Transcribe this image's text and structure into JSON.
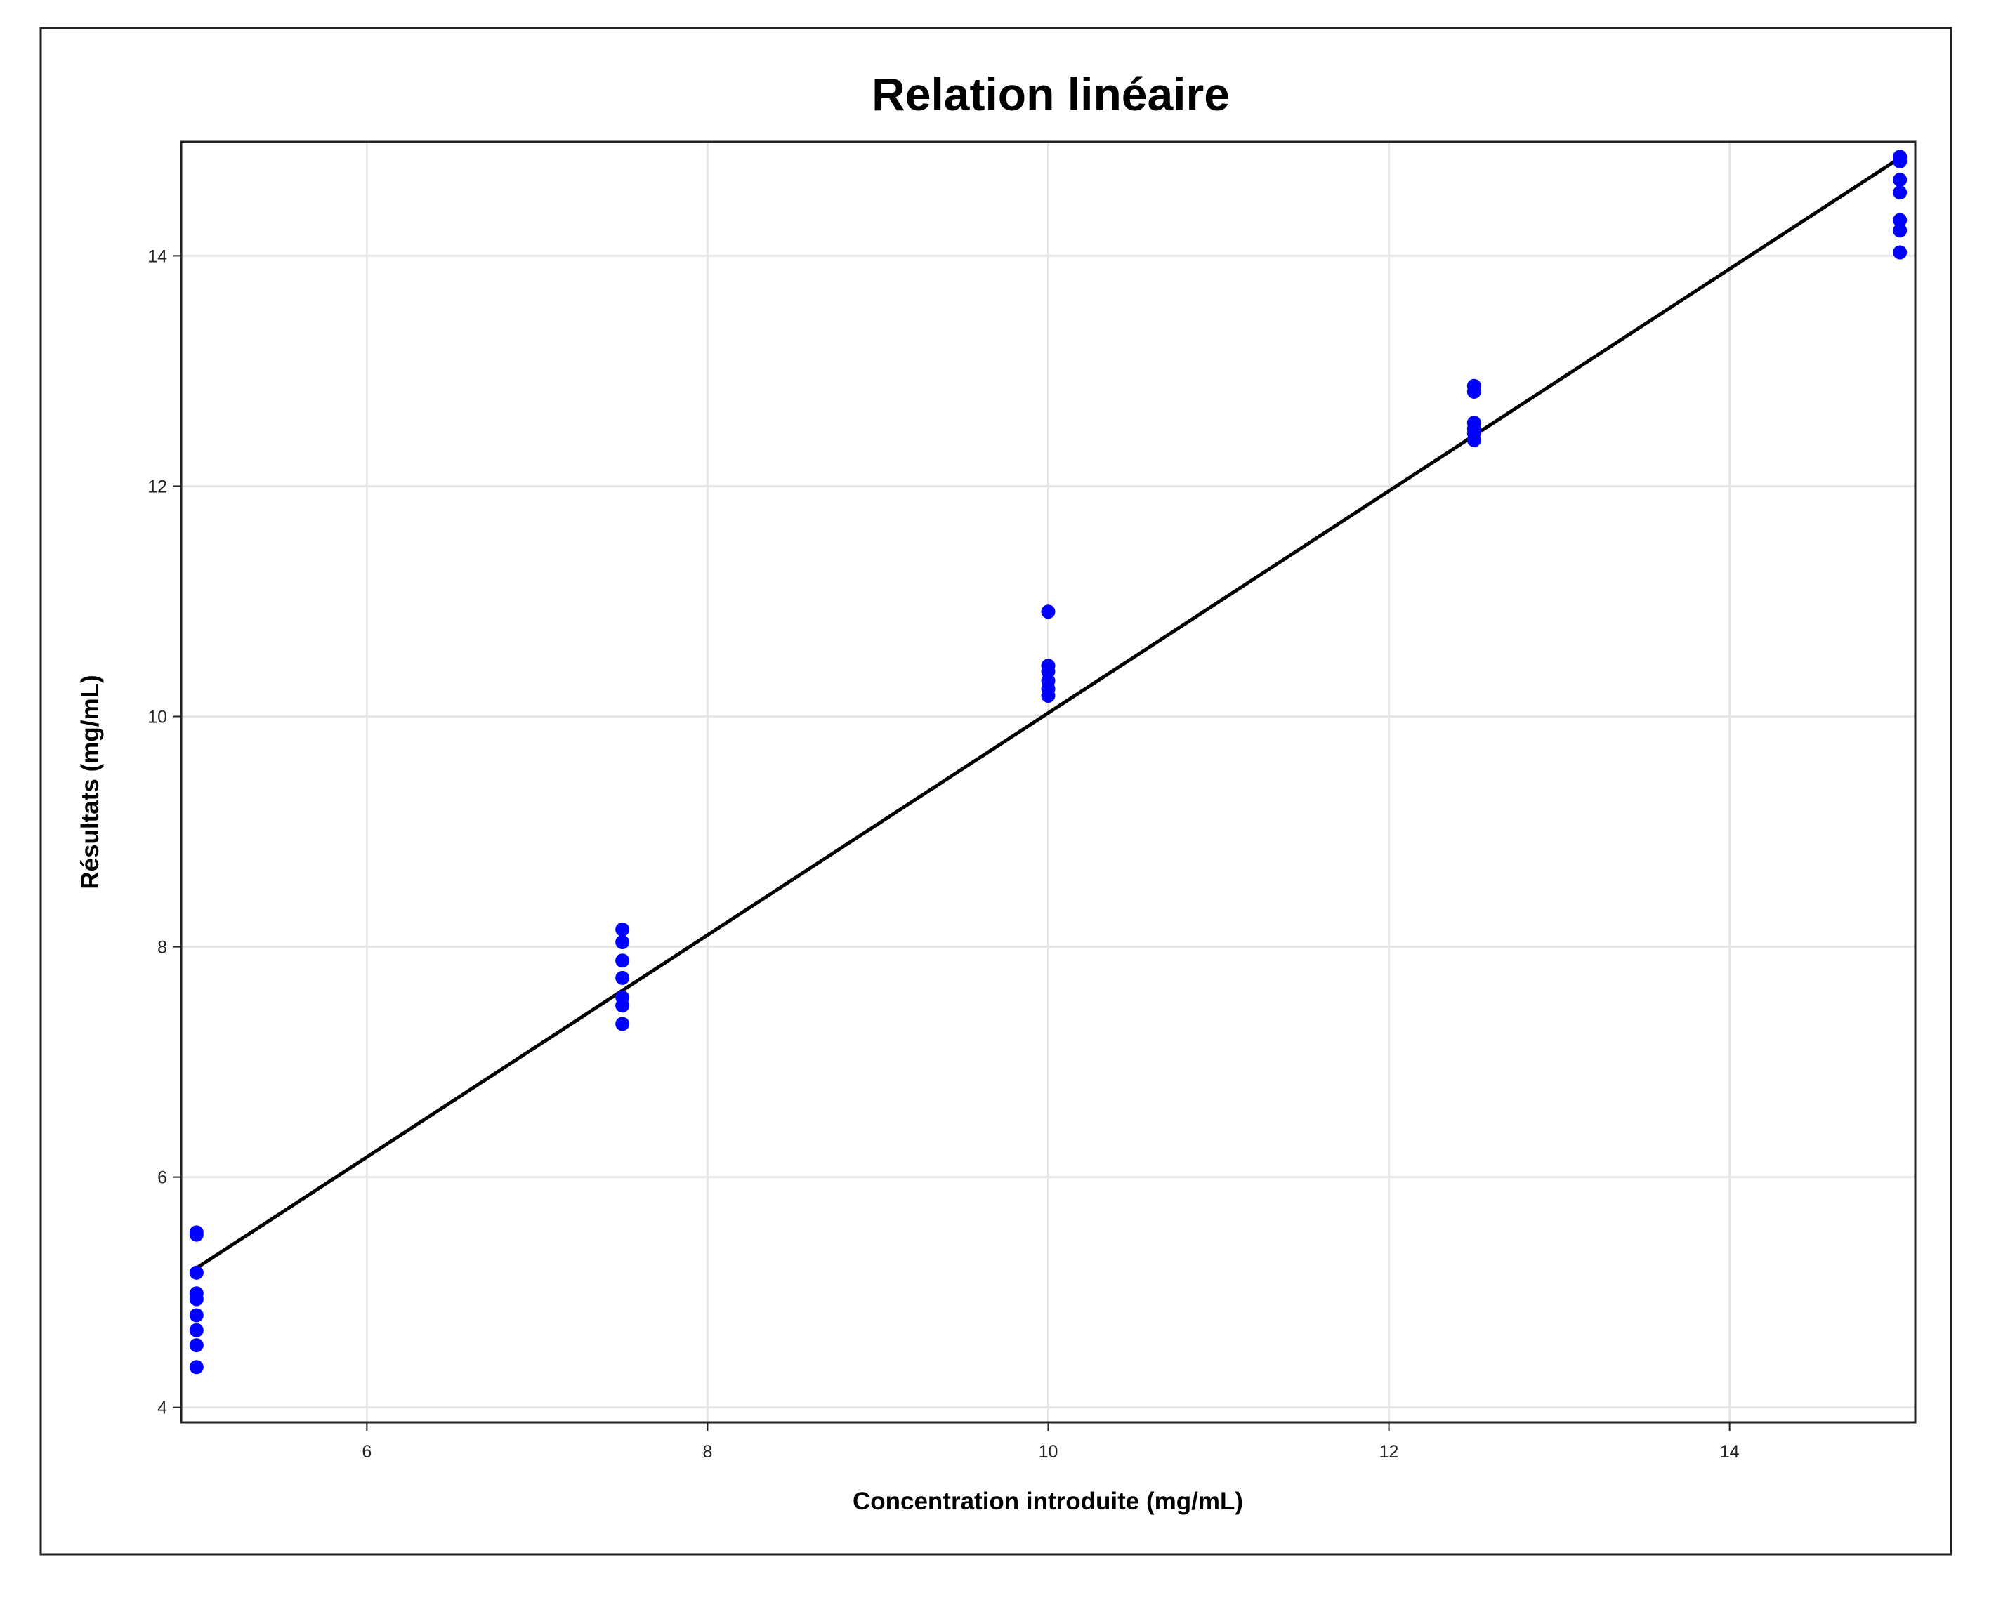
{
  "chart_data": {
    "type": "scatter",
    "title": "Relation linéaire",
    "xlabel": "Concentration introduite (mg/mL)",
    "ylabel": "Résultats (mg/mL)",
    "xlim": [
      4.91,
      15.09
    ],
    "ylim": [
      3.87,
      14.99
    ],
    "xticks": [
      6,
      8,
      10,
      12,
      14
    ],
    "yticks": [
      4,
      6,
      8,
      10,
      12,
      14
    ],
    "grid": true,
    "marker_color": "#0000ff",
    "line_color": "#000000",
    "points": [
      {
        "x": 5,
        "y": 5.52
      },
      {
        "x": 5,
        "y": 5.5
      },
      {
        "x": 5,
        "y": 5.17
      },
      {
        "x": 5,
        "y": 4.99
      },
      {
        "x": 5,
        "y": 4.94
      },
      {
        "x": 5,
        "y": 4.8
      },
      {
        "x": 5,
        "y": 4.67
      },
      {
        "x": 5,
        "y": 4.54
      },
      {
        "x": 5,
        "y": 4.35
      },
      {
        "x": 7.5,
        "y": 8.15
      },
      {
        "x": 7.5,
        "y": 8.04
      },
      {
        "x": 7.5,
        "y": 7.88
      },
      {
        "x": 7.5,
        "y": 7.73
      },
      {
        "x": 7.5,
        "y": 7.56
      },
      {
        "x": 7.5,
        "y": 7.49
      },
      {
        "x": 7.5,
        "y": 7.33
      },
      {
        "x": 10,
        "y": 10.91
      },
      {
        "x": 10,
        "y": 10.44
      },
      {
        "x": 10,
        "y": 10.39
      },
      {
        "x": 10,
        "y": 10.31
      },
      {
        "x": 10,
        "y": 10.24
      },
      {
        "x": 10,
        "y": 10.18
      },
      {
        "x": 12.5,
        "y": 12.87
      },
      {
        "x": 12.5,
        "y": 12.82
      },
      {
        "x": 12.5,
        "y": 12.55
      },
      {
        "x": 12.5,
        "y": 12.5
      },
      {
        "x": 12.5,
        "y": 12.46
      },
      {
        "x": 12.5,
        "y": 12.4
      },
      {
        "x": 15,
        "y": 14.86
      },
      {
        "x": 15,
        "y": 14.82
      },
      {
        "x": 15,
        "y": 14.66
      },
      {
        "x": 15,
        "y": 14.55
      },
      {
        "x": 15,
        "y": 14.31
      },
      {
        "x": 15,
        "y": 14.22
      },
      {
        "x": 15,
        "y": 14.03
      }
    ],
    "fit_line": {
      "x": [
        5,
        15
      ],
      "y": [
        5.21,
        14.85
      ]
    }
  }
}
